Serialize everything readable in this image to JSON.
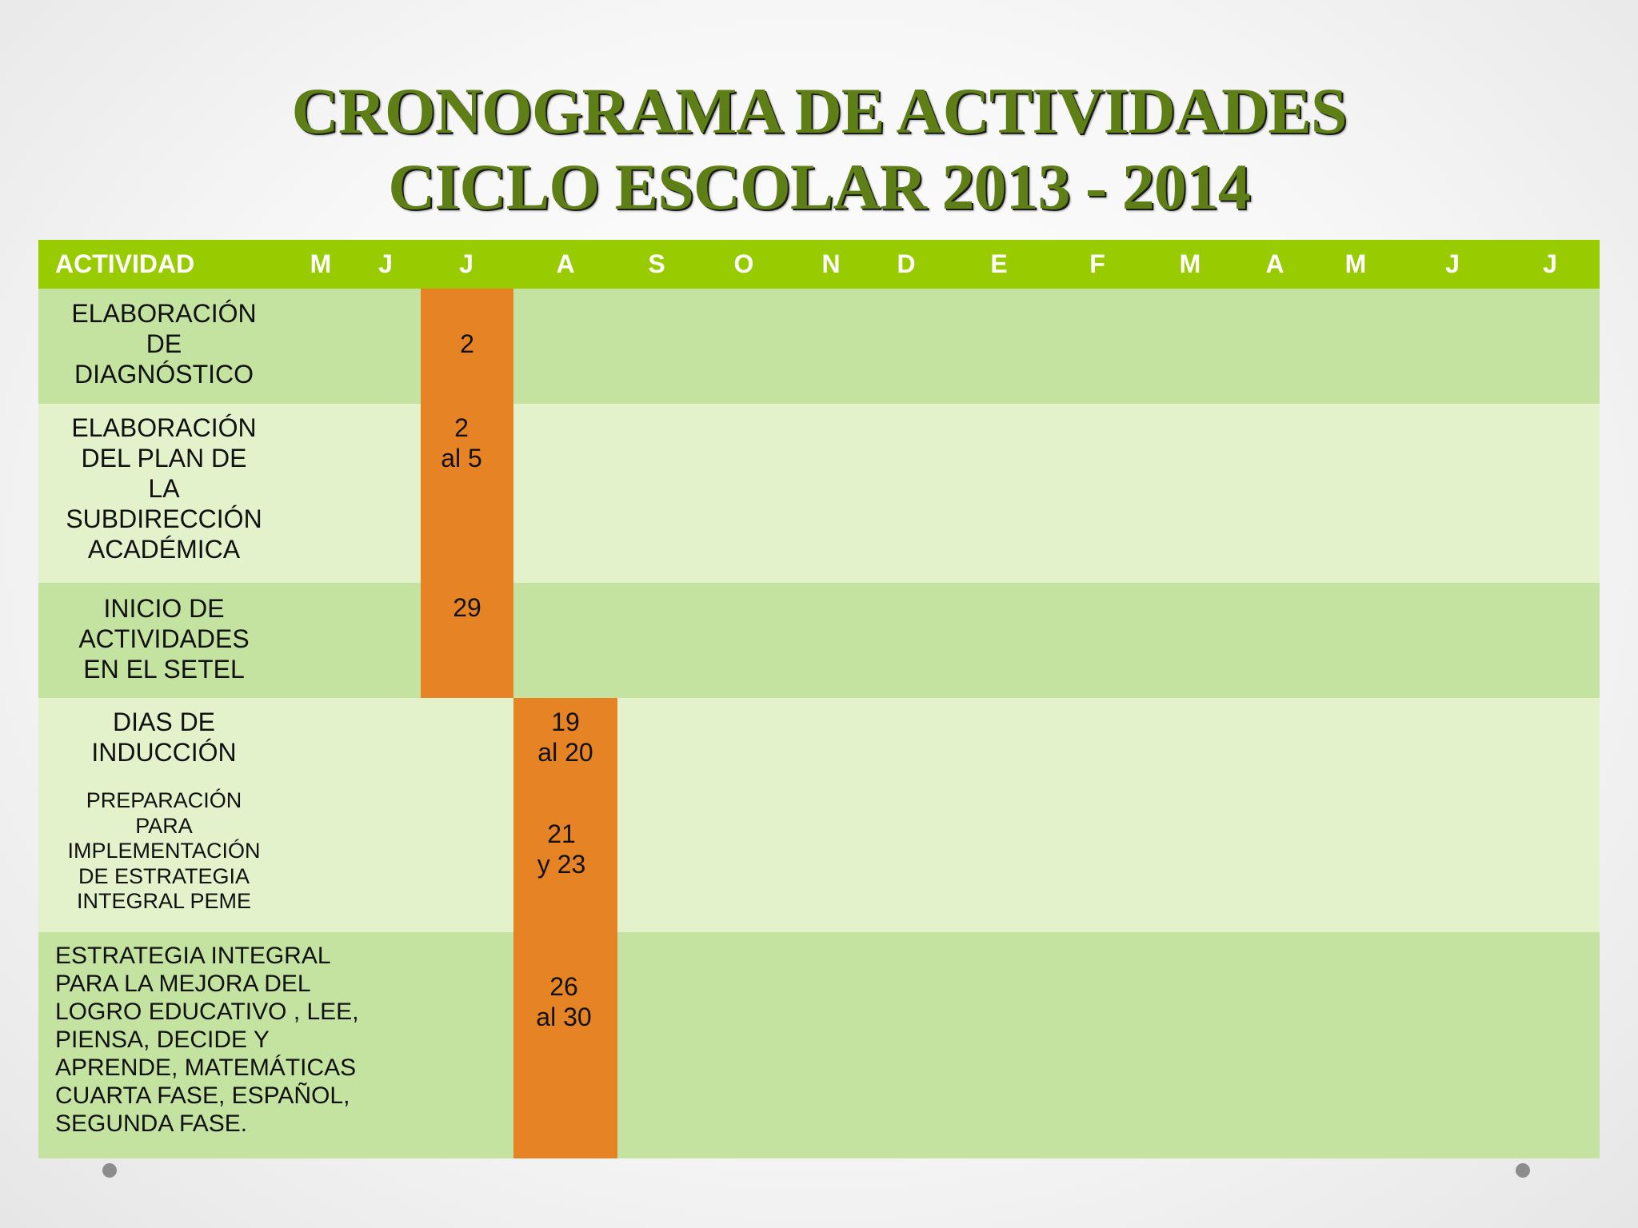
{
  "title": {
    "line1": "CRONOGRAMA DE ACTIVIDADES",
    "line2": "CICLO ESCOLAR   2013 - 2014"
  },
  "colors": {
    "header_green": "#99cc00",
    "row_dark": "#c4e3a0",
    "row_light": "#e4f2cc",
    "highlight_orange": "#e68425",
    "title_green": "#5e7f16"
  },
  "table": {
    "headers": [
      "ACTIVIDAD",
      "M",
      "J",
      "J",
      "A",
      "S",
      "O",
      "N",
      "D",
      "E",
      "F",
      "M",
      "A",
      "M",
      "J",
      "J"
    ],
    "rows": [
      {
        "activity": "ELABORACIÓN\nDE\nDIAGNÓSTICO",
        "month": "J",
        "dates": "2"
      },
      {
        "activity": "ELABORACIÓN\nDEL PLAN DE\nLA\nSUBDIRECCIÓN\nACADÉMICA",
        "month": "J",
        "dates": "2\n al 5"
      },
      {
        "activity": "INICIO DE\nACTIVIDADES\nEN EL SETEL",
        "month": "J",
        "dates": "29"
      },
      {
        "activity": "DIAS DE\nINDUCCIÓN",
        "month": "A",
        "dates": "19\n al 20"
      },
      {
        "activity": "PREPARACIÓN\nPARA\nIMPLEMENTACIÓN\nDE ESTRATEGIA\nINTEGRAL  PEME",
        "month": "A",
        "dates": "21\n y 23"
      },
      {
        "activity": "ESTRATEGIA INTEGRAL\nPARA LA MEJORA DEL\nLOGRO EDUCATIVO , LEE,\nPIENSA, DECIDE Y\nAPRENDE, MATEMÁTICAS\nCUARTA FASE, ESPAÑOL,\nSEGUNDA FASE.",
        "month": "A",
        "dates": "26\n al  30"
      }
    ]
  }
}
